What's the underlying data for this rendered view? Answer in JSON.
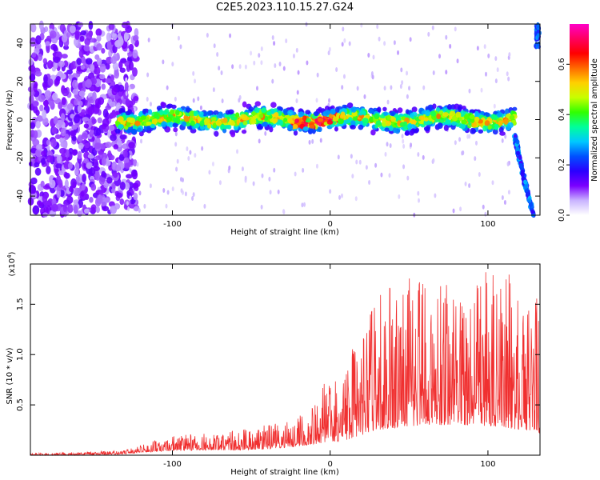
{
  "title": "C2E5.2023.110.15.27.G24",
  "chart_data": [
    {
      "type": "heatmap",
      "xlabel": "Height of straight line (km)",
      "ylabel": "Frequency (Hz)",
      "xlim": [
        -190,
        133
      ],
      "ylim": [
        -50,
        50
      ],
      "x_ticks": [
        -100,
        0,
        100
      ],
      "x_tick_labels": [
        "-100",
        "0",
        "100"
      ],
      "y_ticks": [
        -40,
        -20,
        0,
        20,
        40
      ],
      "y_tick_labels": [
        "-40",
        "-20",
        "0",
        "20",
        "40"
      ],
      "colorbar": {
        "label": "Normalized spectral amplitude",
        "range": [
          0.0,
          0.76
        ],
        "ticks": [
          0.0,
          0.2,
          0.4,
          0.6
        ],
        "tick_labels": [
          "0.0",
          "0.2",
          "0.4",
          "0.6"
        ],
        "colors": [
          "#ffffff",
          "#c9b3ff",
          "#7a00ff",
          "#2a00ff",
          "#0050ff",
          "#00c8ff",
          "#00ff9a",
          "#30ff00",
          "#c8ff00",
          "#ffd000",
          "#ff6a00",
          "#ff0000",
          "#ff0060",
          "#ff00c8"
        ]
      },
      "features": {
        "noise_region_x": [
          -190,
          -130
        ],
        "signal_band_x": [
          -135,
          117
        ],
        "signal_center_hz": 0,
        "signal_halfwidth_hz": 8,
        "edge_curve": [
          [
            117,
            -8
          ],
          [
            120,
            -20
          ],
          [
            124,
            -35
          ],
          [
            129,
            -50
          ]
        ],
        "peak_x": -10,
        "peak_value": 0.7
      }
    },
    {
      "type": "line",
      "xlabel": "Height of straight line (km)",
      "ylabel": "SNR (10 * v/v)",
      "multiplier_label": "(x10",
      "multiplier_exponent": "4",
      "multiplier_close": ")",
      "xlim": [
        -190,
        133
      ],
      "ylim": [
        0,
        1.9
      ],
      "x_ticks": [
        -100,
        0,
        100
      ],
      "x_tick_labels": [
        "-100",
        "0",
        "100"
      ],
      "y_ticks": [
        0.5,
        1.0,
        1.5
      ],
      "y_tick_labels": [
        "0.5",
        "1.0",
        "1.5"
      ],
      "color": "#f03030",
      "envelope": {
        "x": [
          -190,
          -160,
          -130,
          -120,
          -100,
          -80,
          -60,
          -40,
          -25,
          -15,
          -5,
          10,
          20,
          30,
          45,
          60,
          75,
          90,
          110,
          120,
          133
        ],
        "base": [
          0.0,
          0.0,
          0.01,
          0.03,
          0.04,
          0.05,
          0.05,
          0.06,
          0.08,
          0.1,
          0.12,
          0.15,
          0.2,
          0.25,
          0.28,
          0.3,
          0.3,
          0.3,
          0.28,
          0.25,
          0.22
        ],
        "peak": [
          0.02,
          0.03,
          0.05,
          0.1,
          0.2,
          0.22,
          0.25,
          0.3,
          0.35,
          0.45,
          0.7,
          0.9,
          1.3,
          1.6,
          1.8,
          1.85,
          1.7,
          1.8,
          1.85,
          1.7,
          1.6
        ]
      }
    }
  ]
}
